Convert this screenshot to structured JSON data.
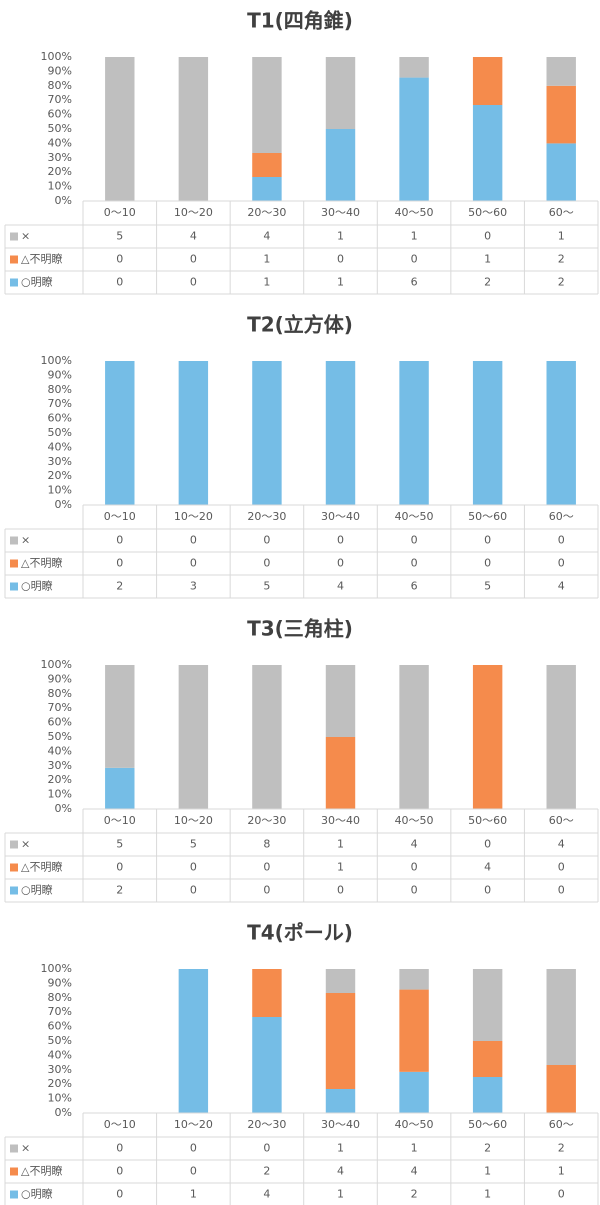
{
  "chart_data": [
    {
      "type": "bar",
      "stacking": "percent",
      "title": "T1(四角錐)",
      "categories": [
        "0～10",
        "10～20",
        "20～30",
        "30～40",
        "40～50",
        "50～60",
        "60～"
      ],
      "series": [
        {
          "name": "×",
          "color": "#bfbfbf",
          "values": [
            5,
            4,
            4,
            1,
            1,
            0,
            1
          ]
        },
        {
          "name": "△不明瞭",
          "color": "#f58b4c",
          "values": [
            0,
            0,
            1,
            0,
            0,
            1,
            2
          ]
        },
        {
          "name": "○明瞭",
          "color": "#75bde6",
          "values": [
            0,
            0,
            1,
            1,
            6,
            2,
            2
          ]
        }
      ],
      "ylim": [
        0,
        100
      ],
      "yticks": [
        {
          "value": 0,
          "label": "0%"
        },
        {
          "value": 10,
          "label": "10%"
        },
        {
          "value": 20,
          "label": "20%"
        },
        {
          "value": 30,
          "label": "30%"
        },
        {
          "value": 40,
          "label": "40%"
        },
        {
          "value": 50,
          "label": "50%"
        },
        {
          "value": 60,
          "label": "60%"
        },
        {
          "value": 70,
          "label": "70%"
        },
        {
          "value": 80,
          "label": "80%"
        },
        {
          "value": 90,
          "label": "90%"
        },
        {
          "value": 100,
          "label": "100%"
        }
      ],
      "grid": false
    },
    {
      "type": "bar",
      "stacking": "percent",
      "title": "T2(立方体)",
      "categories": [
        "0～10",
        "10～20",
        "20～30",
        "30～40",
        "40～50",
        "50～60",
        "60～"
      ],
      "series": [
        {
          "name": "×",
          "color": "#bfbfbf",
          "values": [
            0,
            0,
            0,
            0,
            0,
            0,
            0
          ]
        },
        {
          "name": "△不明瞭",
          "color": "#f58b4c",
          "values": [
            0,
            0,
            0,
            0,
            0,
            0,
            0
          ]
        },
        {
          "name": "○明瞭",
          "color": "#75bde6",
          "values": [
            2,
            3,
            5,
            4,
            6,
            5,
            4
          ]
        }
      ],
      "ylim": [
        0,
        100
      ],
      "yticks": [
        {
          "value": 0,
          "label": "0%"
        },
        {
          "value": 10,
          "label": "10%"
        },
        {
          "value": 20,
          "label": "20%"
        },
        {
          "value": 30,
          "label": "30%"
        },
        {
          "value": 40,
          "label": "40%"
        },
        {
          "value": 50,
          "label": "50%"
        },
        {
          "value": 60,
          "label": "60%"
        },
        {
          "value": 70,
          "label": "70%"
        },
        {
          "value": 80,
          "label": "80%"
        },
        {
          "value": 90,
          "label": "90%"
        },
        {
          "value": 100,
          "label": "100%"
        }
      ],
      "grid": false
    },
    {
      "type": "bar",
      "stacking": "percent",
      "title": "T3(三角柱)",
      "categories": [
        "0～10",
        "10～20",
        "20～30",
        "30～40",
        "40～50",
        "50～60",
        "60～"
      ],
      "series": [
        {
          "name": "×",
          "color": "#bfbfbf",
          "values": [
            5,
            5,
            8,
            1,
            4,
            0,
            4
          ]
        },
        {
          "name": "△不明瞭",
          "color": "#f58b4c",
          "values": [
            0,
            0,
            0,
            1,
            0,
            4,
            0
          ]
        },
        {
          "name": "○明瞭",
          "color": "#75bde6",
          "values": [
            2,
            0,
            0,
            0,
            0,
            0,
            0
          ]
        }
      ],
      "ylim": [
        0,
        100
      ],
      "yticks": [
        {
          "value": 0,
          "label": "0%"
        },
        {
          "value": 10,
          "label": "10%"
        },
        {
          "value": 20,
          "label": "20%"
        },
        {
          "value": 30,
          "label": "30%"
        },
        {
          "value": 40,
          "label": "40%"
        },
        {
          "value": 50,
          "label": "50%"
        },
        {
          "value": 60,
          "label": "60%"
        },
        {
          "value": 70,
          "label": "70%"
        },
        {
          "value": 80,
          "label": "80%"
        },
        {
          "value": 90,
          "label": "90%"
        },
        {
          "value": 100,
          "label": "100%"
        }
      ],
      "grid": false
    },
    {
      "type": "bar",
      "stacking": "percent",
      "title": "T4(ポール)",
      "categories": [
        "0～10",
        "10～20",
        "20～30",
        "30～40",
        "40～50",
        "50～60",
        "60～"
      ],
      "series": [
        {
          "name": "×",
          "color": "#bfbfbf",
          "values": [
            0,
            0,
            0,
            1,
            1,
            2,
            2
          ]
        },
        {
          "name": "△不明瞭",
          "color": "#f58b4c",
          "values": [
            0,
            0,
            2,
            4,
            4,
            1,
            1
          ]
        },
        {
          "name": "○明瞭",
          "color": "#75bde6",
          "values": [
            0,
            1,
            4,
            1,
            2,
            1,
            0
          ]
        }
      ],
      "ylim": [
        0,
        100
      ],
      "yticks": [
        {
          "value": 0,
          "label": "0%"
        },
        {
          "value": 10,
          "label": "10%"
        },
        {
          "value": 20,
          "label": "20%"
        },
        {
          "value": 30,
          "label": "30%"
        },
        {
          "value": 40,
          "label": "40%"
        },
        {
          "value": 50,
          "label": "50%"
        },
        {
          "value": 60,
          "label": "60%"
        },
        {
          "value": 70,
          "label": "70%"
        },
        {
          "value": 80,
          "label": "80%"
        },
        {
          "value": 90,
          "label": "90%"
        },
        {
          "value": 100,
          "label": "100%"
        }
      ],
      "grid": false
    }
  ]
}
